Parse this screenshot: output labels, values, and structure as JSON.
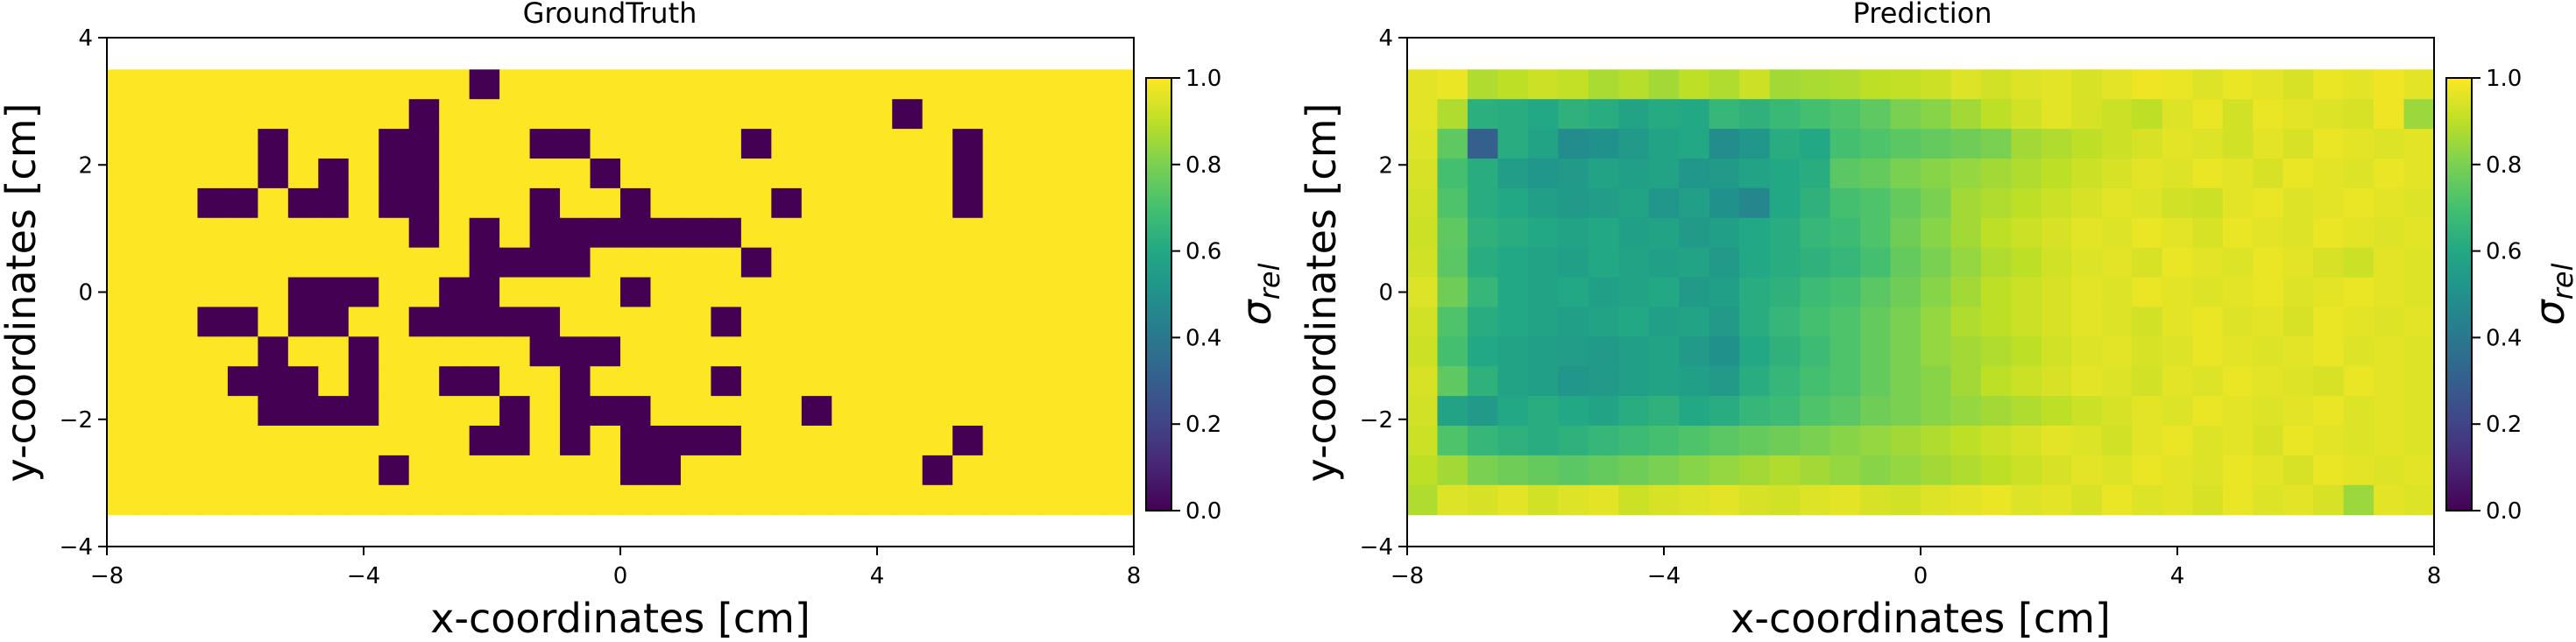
{
  "chart_data": [
    {
      "type": "heatmap",
      "title": "GroundTruth",
      "xlabel": "x-coordinates [cm]",
      "ylabel": "y-coordinates [cm]",
      "xlim": [
        -8,
        8
      ],
      "ylim": [
        -4,
        4
      ],
      "xticks": [
        -8,
        -4,
        0,
        4,
        8
      ],
      "yticks": [
        -4,
        -2,
        0,
        2,
        4
      ],
      "extent": {
        "x": [
          -8,
          8
        ],
        "y": [
          -3.5,
          3.5
        ]
      },
      "colorbar": {
        "label": "σ_rel",
        "label_main": "σ",
        "label_sub": "rel",
        "range": [
          0,
          1
        ],
        "ticks": [
          "0.0",
          "0.2",
          "0.4",
          "0.6",
          "0.8",
          "1.0"
        ]
      },
      "grid": false,
      "colormap": "viridis",
      "cols": 34,
      "rows": 15,
      "default_value": 1.0,
      "value_cells_note_free": true,
      "cells_with_value_0": [
        [
          5,
          11
        ],
        [
          6,
          11
        ],
        [
          7,
          11
        ],
        [
          8,
          11
        ],
        [
          8,
          9
        ],
        [
          5,
          9
        ],
        [
          9,
          13
        ],
        [
          4,
          10
        ],
        [
          3,
          8
        ],
        [
          4,
          8
        ],
        [
          6,
          8
        ],
        [
          7,
          8
        ],
        [
          5,
          10
        ],
        [
          6,
          10
        ],
        [
          8,
          10
        ],
        [
          12,
          12
        ],
        [
          13,
          12
        ],
        [
          9,
          4
        ],
        [
          9,
          3
        ],
        [
          9,
          2
        ],
        [
          6,
          4
        ],
        [
          7,
          4
        ],
        [
          7,
          3
        ],
        [
          5,
          3
        ],
        [
          5,
          2
        ],
        [
          3,
          4
        ],
        [
          4,
          4
        ],
        [
          6,
          7
        ],
        [
          7,
          7
        ],
        [
          8,
          7
        ],
        [
          13,
          6
        ],
        [
          12,
          5
        ],
        [
          12,
          7
        ],
        [
          12,
          10
        ],
        [
          11,
          10
        ],
        [
          10,
          4
        ],
        [
          10,
          3
        ],
        [
          10,
          8
        ],
        [
          11,
          8
        ],
        [
          12,
          8
        ],
        [
          13,
          8
        ],
        [
          11,
          7
        ],
        [
          12,
          6
        ],
        [
          13,
          6
        ],
        [
          14,
          6
        ],
        [
          15,
          5
        ],
        [
          15,
          6
        ],
        [
          10,
          5
        ],
        [
          14,
          5
        ],
        [
          10,
          1
        ],
        [
          10,
          2
        ],
        [
          10,
          3
        ],
        [
          14,
          4
        ],
        [
          14,
          5
        ],
        [
          16,
          3
        ],
        [
          17,
          4
        ],
        [
          14,
          2
        ],
        [
          15,
          2
        ],
        [
          16,
          5
        ],
        [
          17,
          5
        ],
        [
          18,
          5
        ],
        [
          19,
          5
        ],
        [
          20,
          5
        ],
        [
          14,
          8
        ],
        [
          15,
          9
        ],
        [
          16,
          9
        ],
        [
          17,
          7
        ],
        [
          14,
          9
        ],
        [
          15,
          10
        ],
        [
          15,
          11
        ],
        [
          16,
          11
        ],
        [
          17,
          11
        ],
        [
          17,
          12
        ],
        [
          17,
          13
        ],
        [
          18,
          12
        ],
        [
          18,
          13
        ],
        [
          20,
          8
        ],
        [
          21,
          6
        ],
        [
          20,
          10
        ],
        [
          21,
          2
        ],
        [
          23,
          11
        ],
        [
          28,
          4
        ],
        [
          28,
          3
        ],
        [
          28,
          2
        ],
        [
          28,
          12
        ],
        [
          27,
          13
        ],
        [
          26,
          1
        ],
        [
          11,
          8
        ],
        [
          15,
          12
        ],
        [
          19,
          12
        ],
        [
          20,
          12
        ],
        [
          13,
          11
        ],
        [
          22,
          4
        ],
        [
          12,
          0
        ]
      ]
    },
    {
      "type": "heatmap",
      "title": "Prediction",
      "xlabel": "x-coordinates [cm]",
      "ylabel": "y-coordinates [cm]",
      "xlim": [
        -8,
        8
      ],
      "ylim": [
        -4,
        4
      ],
      "xticks": [
        -8,
        -4,
        0,
        4,
        8
      ],
      "yticks": [
        -4,
        -2,
        0,
        2,
        4
      ],
      "extent": {
        "x": [
          -8,
          8
        ],
        "y": [
          -3.5,
          3.5
        ]
      },
      "colorbar": {
        "label": "σ_rel",
        "label_main": "σ",
        "label_sub": "rel",
        "range": [
          0,
          1
        ],
        "ticks": [
          "0.0",
          "0.2",
          "0.4",
          "0.6",
          "0.8",
          "1.0"
        ]
      },
      "grid": false,
      "colormap": "viridis",
      "cols": 34,
      "rows": 15,
      "values": [
        [
          0.96,
          0.97,
          0.88,
          0.9,
          0.92,
          0.91,
          0.87,
          0.89,
          0.86,
          0.9,
          0.88,
          0.92,
          0.86,
          0.87,
          0.88,
          0.9,
          0.91,
          0.92,
          0.95,
          0.93,
          0.95,
          0.96,
          0.94,
          0.96,
          0.98,
          0.97,
          0.95,
          0.97,
          0.96,
          0.94,
          0.97,
          0.96,
          0.98,
          0.96
        ],
        [
          0.96,
          0.88,
          0.63,
          0.62,
          0.6,
          0.64,
          0.62,
          0.58,
          0.61,
          0.6,
          0.66,
          0.64,
          0.67,
          0.7,
          0.72,
          0.75,
          0.8,
          0.82,
          0.86,
          0.9,
          0.93,
          0.96,
          0.94,
          0.92,
          0.9,
          0.95,
          0.97,
          0.93,
          0.97,
          0.96,
          0.95,
          0.94,
          0.98,
          0.85
        ],
        [
          0.95,
          0.75,
          0.3,
          0.62,
          0.58,
          0.48,
          0.5,
          0.54,
          0.58,
          0.6,
          0.48,
          0.52,
          0.62,
          0.6,
          0.7,
          0.72,
          0.74,
          0.76,
          0.78,
          0.8,
          0.86,
          0.88,
          0.9,
          0.92,
          0.94,
          0.96,
          0.95,
          0.93,
          0.96,
          0.94,
          0.97,
          0.96,
          0.95,
          0.96
        ],
        [
          0.94,
          0.7,
          0.62,
          0.55,
          0.52,
          0.54,
          0.58,
          0.56,
          0.58,
          0.52,
          0.54,
          0.58,
          0.6,
          0.62,
          0.74,
          0.76,
          0.8,
          0.82,
          0.84,
          0.86,
          0.88,
          0.9,
          0.92,
          0.94,
          0.96,
          0.95,
          0.97,
          0.96,
          0.94,
          0.97,
          0.96,
          0.95,
          0.97,
          0.96
        ],
        [
          0.93,
          0.72,
          0.62,
          0.6,
          0.56,
          0.54,
          0.55,
          0.58,
          0.52,
          0.56,
          0.5,
          0.46,
          0.6,
          0.64,
          0.7,
          0.72,
          0.76,
          0.8,
          0.86,
          0.88,
          0.9,
          0.92,
          0.94,
          0.96,
          0.95,
          0.93,
          0.92,
          0.96,
          0.97,
          0.95,
          0.96,
          0.97,
          0.96,
          0.95
        ],
        [
          0.92,
          0.75,
          0.64,
          0.62,
          0.6,
          0.58,
          0.6,
          0.56,
          0.58,
          0.54,
          0.56,
          0.6,
          0.62,
          0.66,
          0.68,
          0.72,
          0.78,
          0.82,
          0.86,
          0.9,
          0.92,
          0.94,
          0.96,
          0.95,
          0.97,
          0.96,
          0.94,
          0.97,
          0.96,
          0.95,
          0.97,
          0.96,
          0.95,
          0.96
        ],
        [
          0.93,
          0.74,
          0.62,
          0.6,
          0.58,
          0.56,
          0.6,
          0.58,
          0.56,
          0.58,
          0.54,
          0.6,
          0.62,
          0.64,
          0.66,
          0.7,
          0.76,
          0.8,
          0.84,
          0.88,
          0.9,
          0.93,
          0.95,
          0.96,
          0.94,
          0.97,
          0.96,
          0.95,
          0.97,
          0.96,
          0.94,
          0.92,
          0.96,
          0.95
        ],
        [
          0.95,
          0.78,
          0.66,
          0.6,
          0.58,
          0.6,
          0.56,
          0.58,
          0.6,
          0.54,
          0.56,
          0.62,
          0.64,
          0.68,
          0.7,
          0.74,
          0.78,
          0.82,
          0.86,
          0.9,
          0.92,
          0.94,
          0.96,
          0.95,
          0.97,
          0.96,
          0.95,
          0.96,
          0.97,
          0.95,
          0.96,
          0.97,
          0.96,
          0.95
        ],
        [
          0.93,
          0.72,
          0.62,
          0.6,
          0.58,
          0.56,
          0.58,
          0.6,
          0.56,
          0.58,
          0.54,
          0.62,
          0.66,
          0.7,
          0.72,
          0.76,
          0.8,
          0.84,
          0.88,
          0.9,
          0.92,
          0.94,
          0.96,
          0.95,
          0.93,
          0.96,
          0.97,
          0.95,
          0.96,
          0.94,
          0.97,
          0.96,
          0.95,
          0.96
        ],
        [
          0.92,
          0.7,
          0.6,
          0.58,
          0.56,
          0.55,
          0.54,
          0.56,
          0.58,
          0.54,
          0.5,
          0.6,
          0.64,
          0.68,
          0.72,
          0.76,
          0.8,
          0.84,
          0.86,
          0.88,
          0.9,
          0.93,
          0.95,
          0.96,
          0.94,
          0.95,
          0.97,
          0.96,
          0.95,
          0.96,
          0.97,
          0.95,
          0.96,
          0.95
        ],
        [
          0.94,
          0.75,
          0.64,
          0.58,
          0.56,
          0.52,
          0.54,
          0.56,
          0.58,
          0.56,
          0.54,
          0.62,
          0.66,
          0.7,
          0.72,
          0.76,
          0.8,
          0.82,
          0.86,
          0.9,
          0.92,
          0.94,
          0.96,
          0.95,
          0.93,
          0.96,
          0.95,
          0.97,
          0.96,
          0.95,
          0.94,
          0.97,
          0.96,
          0.95
        ],
        [
          0.93,
          0.58,
          0.54,
          0.6,
          0.62,
          0.6,
          0.58,
          0.62,
          0.64,
          0.6,
          0.62,
          0.66,
          0.68,
          0.72,
          0.74,
          0.78,
          0.8,
          0.82,
          0.84,
          0.86,
          0.88,
          0.9,
          0.92,
          0.94,
          0.96,
          0.95,
          0.97,
          0.96,
          0.95,
          0.96,
          0.97,
          0.95,
          0.96,
          0.95
        ],
        [
          0.92,
          0.72,
          0.66,
          0.64,
          0.62,
          0.64,
          0.66,
          0.68,
          0.7,
          0.72,
          0.74,
          0.76,
          0.78,
          0.8,
          0.82,
          0.84,
          0.86,
          0.88,
          0.9,
          0.92,
          0.94,
          0.96,
          0.95,
          0.93,
          0.96,
          0.97,
          0.95,
          0.96,
          0.94,
          0.97,
          0.96,
          0.95,
          0.96,
          0.95
        ],
        [
          0.9,
          0.86,
          0.8,
          0.78,
          0.76,
          0.74,
          0.76,
          0.78,
          0.8,
          0.82,
          0.84,
          0.86,
          0.88,
          0.86,
          0.84,
          0.82,
          0.84,
          0.86,
          0.88,
          0.9,
          0.92,
          0.94,
          0.96,
          0.95,
          0.97,
          0.96,
          0.95,
          0.97,
          0.96,
          0.94,
          0.97,
          0.96,
          0.95,
          0.96
        ],
        [
          0.88,
          0.95,
          0.94,
          0.96,
          0.93,
          0.95,
          0.96,
          0.92,
          0.94,
          0.95,
          0.96,
          0.94,
          0.93,
          0.95,
          0.96,
          0.94,
          0.93,
          0.95,
          0.96,
          0.97,
          0.95,
          0.96,
          0.94,
          0.97,
          0.95,
          0.96,
          0.94,
          0.97,
          0.95,
          0.96,
          0.94,
          0.85,
          0.96,
          0.95
        ]
      ]
    }
  ]
}
